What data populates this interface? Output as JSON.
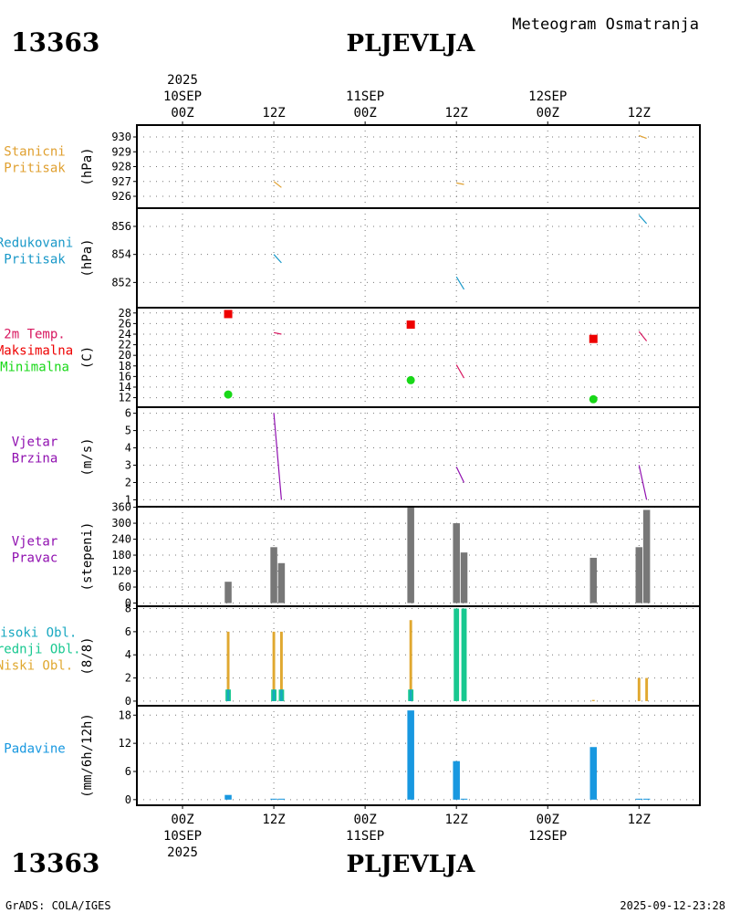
{
  "header": {
    "station_id": "13363",
    "station_name": "PLJEVLJA",
    "subtitle": "Meteogram Osmatranja"
  },
  "footer": {
    "station_id": "13363",
    "station_name": "PLJEVLJA",
    "credit": "GrADS: COLA/IGES",
    "timestamp": "2025-09-12-23:28"
  },
  "colors": {
    "station_pressure": "#e0a030",
    "reduced_pressure": "#1898c8",
    "temp_label": "#d81860",
    "tmax": "#ee0000",
    "tmin": "#18d818",
    "wind": "#9010b0",
    "wind_dir": "#777777",
    "cloud_high": "#18a8c0",
    "cloud_mid": "#18c890",
    "cloud_low": "#e0a830",
    "precip": "#1898e0"
  },
  "chart_data": {
    "type": "meteogram",
    "time_axis": {
      "range_hours": [
        -6,
        68
      ],
      "ticks": [
        {
          "h": 0,
          "lines": [
            "00Z",
            "10SEP",
            "2025"
          ]
        },
        {
          "h": 12,
          "lines": [
            "12Z"
          ]
        },
        {
          "h": 24,
          "lines": [
            "00Z",
            "11SEP"
          ]
        },
        {
          "h": 36,
          "lines": [
            "12Z"
          ]
        },
        {
          "h": 48,
          "lines": [
            "00Z",
            "12SEP"
          ]
        },
        {
          "h": 60,
          "lines": [
            "12Z"
          ]
        }
      ],
      "top_year": "2025"
    },
    "panels": [
      {
        "id": "station_pressure",
        "labels": [
          {
            "text": "Stanicni",
            "color": "#e0a030"
          },
          {
            "text": "Pritisak",
            "color": "#e0a030"
          }
        ],
        "unit": "(hPa)",
        "ylim": [
          925.2,
          930.8
        ],
        "yticks": [
          926,
          927,
          928,
          929,
          930
        ],
        "series": [
          {
            "type": "line",
            "name": "Stanicni Pritisak",
            "color": "#e0a030",
            "points": [
              [
                12,
                927
              ],
              [
                13,
                926.6
              ]
            ]
          },
          {
            "type": "line",
            "name": "Stanicni Pritisak",
            "color": "#e0a030",
            "points": [
              [
                36,
                926.9
              ],
              [
                37,
                926.8
              ]
            ]
          },
          {
            "type": "line",
            "name": "Stanicni Pritisak",
            "color": "#e0a030",
            "points": [
              [
                60,
                930.1
              ],
              [
                61,
                929.9
              ]
            ]
          }
        ]
      },
      {
        "id": "reduced_pressure",
        "labels": [
          {
            "text": "Redukovani",
            "color": "#1898c8"
          },
          {
            "text": "Pritisak",
            "color": "#1898c8"
          }
        ],
        "unit": "(hPa)",
        "ylim": [
          850.2,
          857.3
        ],
        "yticks": [
          852,
          854,
          856
        ],
        "series": [
          {
            "type": "line",
            "name": "Redukovani Pritisak",
            "color": "#1898c8",
            "points": [
              [
                12,
                854
              ],
              [
                13,
                853.4
              ]
            ]
          },
          {
            "type": "line",
            "name": "Redukovani Pritisak",
            "color": "#1898c8",
            "points": [
              [
                36,
                852.4
              ],
              [
                37,
                851.5
              ]
            ]
          },
          {
            "type": "line",
            "name": "Redukovani Pritisak",
            "color": "#1898c8",
            "points": [
              [
                60,
                856.8
              ],
              [
                61,
                856.2
              ]
            ]
          }
        ]
      },
      {
        "id": "temperature",
        "labels": [
          {
            "text": "2m Temp.",
            "color": "#d81860"
          },
          {
            "text": "Maksimalna",
            "color": "#ee0000"
          },
          {
            "text": "Minimalna",
            "color": "#18d818"
          }
        ],
        "unit": "(C)",
        "ylim": [
          10.2,
          29
        ],
        "yticks": [
          12,
          14,
          16,
          18,
          20,
          22,
          24,
          26,
          28
        ],
        "series": [
          {
            "type": "line",
            "name": "2m Temp.",
            "color": "#d81860",
            "points": [
              [
                12,
                24.3
              ],
              [
                13,
                24
              ]
            ]
          },
          {
            "type": "line",
            "name": "2m Temp.",
            "color": "#d81860",
            "points": [
              [
                36,
                18.2
              ],
              [
                37,
                15.7
              ]
            ]
          },
          {
            "type": "line",
            "name": "2m Temp.",
            "color": "#d81860",
            "points": [
              [
                60,
                24.5
              ],
              [
                61,
                22.7
              ]
            ]
          },
          {
            "type": "square",
            "name": "Maksimalna",
            "color": "#ee0000",
            "points": [
              [
                6,
                27.8
              ],
              [
                30,
                25.8
              ],
              [
                54,
                23.1
              ]
            ]
          },
          {
            "type": "circle",
            "name": "Minimalna",
            "color": "#18d818",
            "points": [
              [
                6,
                12.6
              ],
              [
                30,
                15.3
              ],
              [
                54,
                11.7
              ]
            ]
          }
        ]
      },
      {
        "id": "wind_speed",
        "labels": [
          {
            "text": "Vjetar",
            "color": "#9010b0"
          },
          {
            "text": "Brzina",
            "color": "#9010b0"
          }
        ],
        "unit": "(m/s)",
        "ylim": [
          0.6,
          6.35
        ],
        "yticks": [
          1,
          2,
          3,
          4,
          5,
          6
        ],
        "series": [
          {
            "type": "line",
            "name": "Vjetar Brzina",
            "color": "#9010b0",
            "points": [
              [
                12,
                6
              ],
              [
                13,
                1
              ]
            ]
          },
          {
            "type": "line",
            "name": "Vjetar Brzina",
            "color": "#9010b0",
            "points": [
              [
                36,
                2.9
              ],
              [
                37,
                2
              ]
            ]
          },
          {
            "type": "line",
            "name": "Vjetar Brzina",
            "color": "#9010b0",
            "points": [
              [
                60,
                3
              ],
              [
                61,
                1
              ]
            ]
          }
        ]
      },
      {
        "id": "wind_direction",
        "labels": [
          {
            "text": "Vjetar",
            "color": "#9010b0"
          },
          {
            "text": "Pravac",
            "color": "#9010b0"
          }
        ],
        "unit": "(stepeni)",
        "ylim": [
          -12,
          362
        ],
        "yticks": [
          0,
          60,
          120,
          180,
          240,
          300,
          360
        ],
        "series": [
          {
            "type": "bar",
            "name": "Vjetar Pravac",
            "color": "#777777",
            "width_h": 0.9,
            "points": [
              [
                6,
                80
              ],
              [
                12,
                210
              ],
              [
                13,
                150
              ],
              [
                30,
                360
              ],
              [
                36,
                300
              ],
              [
                37,
                190
              ],
              [
                54,
                170
              ],
              [
                60,
                210
              ],
              [
                61,
                350
              ]
            ]
          }
        ]
      },
      {
        "id": "clouds",
        "labels": [
          {
            "text": "Visoki Obl.",
            "color": "#18a8c0"
          },
          {
            "text": "Srednji Obl.",
            "color": "#18c890"
          },
          {
            "text": "Niski Obl.",
            "color": "#e0a830"
          }
        ],
        "unit": "(8/8)",
        "ylim": [
          -0.4,
          8.2
        ],
        "yticks": [
          0,
          2,
          4,
          6,
          8
        ],
        "series": [
          {
            "type": "bar",
            "name": "Niski Obl.",
            "color": "#e0a830",
            "width_h": 0.35,
            "points": [
              [
                6,
                6
              ],
              [
                12,
                6
              ],
              [
                13,
                6
              ],
              [
                30,
                7
              ],
              [
                36,
                8
              ],
              [
                37,
                8
              ],
              [
                54,
                0.1
              ],
              [
                60,
                2
              ],
              [
                61,
                2
              ]
            ]
          },
          {
            "type": "bar",
            "name": "Srednji Obl.",
            "color": "#18c890",
            "width_h": 0.7,
            "points": [
              [
                6,
                1
              ],
              [
                12,
                1
              ],
              [
                13,
                1
              ],
              [
                30,
                1
              ],
              [
                36,
                8
              ],
              [
                37,
                8
              ],
              [
                54,
                0
              ],
              [
                60,
                0
              ],
              [
                61,
                0
              ]
            ]
          },
          {
            "type": "bar",
            "name": "Visoki Obl.",
            "color": "#18a8c0",
            "width_h": 0.3,
            "points": [
              [
                6,
                1
              ],
              [
                12,
                1
              ],
              [
                13,
                1
              ],
              [
                30,
                1
              ],
              [
                36,
                0
              ],
              [
                37,
                0
              ],
              [
                54,
                0
              ],
              [
                60,
                0
              ],
              [
                61,
                0
              ]
            ]
          }
        ]
      },
      {
        "id": "precipitation",
        "labels": [
          {
            "text": "Padavine",
            "color": "#1898e0"
          }
        ],
        "unit": "(mm/6h/12h)",
        "ylim": [
          -1.2,
          20
        ],
        "yticks": [
          0,
          6,
          12,
          18
        ],
        "series": [
          {
            "type": "bar",
            "name": "Padavine",
            "color": "#1898e0",
            "width_h": 0.9,
            "points": [
              [
                6,
                1
              ],
              [
                12,
                0.2
              ],
              [
                13,
                0.2
              ],
              [
                30,
                19
              ],
              [
                36,
                8.2
              ],
              [
                37,
                0.2
              ],
              [
                54,
                11.2
              ],
              [
                60,
                0.2
              ],
              [
                61,
                0.2
              ]
            ]
          }
        ]
      }
    ]
  }
}
